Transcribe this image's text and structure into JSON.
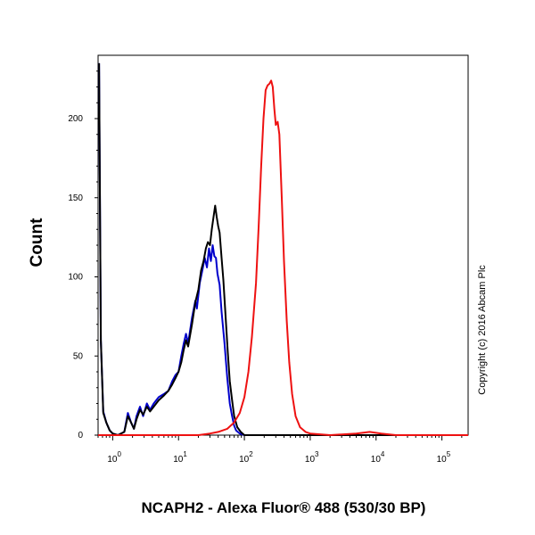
{
  "chart_data": {
    "type": "line",
    "title": "",
    "xlabel": "NCAPH2 - Alexa Fluor® 488 (530/30 BP)",
    "ylabel": "Count",
    "x_scale": "log",
    "xlim": [
      0.6,
      250000
    ],
    "ylim": [
      0,
      240
    ],
    "y_ticks": [
      0,
      50,
      100,
      150,
      200
    ],
    "y_tick_labels": [
      "0",
      "50",
      "100",
      "150",
      "200"
    ],
    "x_ticks": [
      1,
      10,
      100,
      1000,
      10000,
      100000
    ],
    "x_tick_base": "10",
    "x_tick_exponents": [
      "0",
      "1",
      "2",
      "3",
      "4",
      "5"
    ],
    "grid": false,
    "legend": "none",
    "series": [
      {
        "color": "#0000cc",
        "points": [
          [
            0.62,
            235
          ],
          [
            0.66,
            60
          ],
          [
            0.72,
            15
          ],
          [
            0.8,
            8
          ],
          [
            0.9,
            3
          ],
          [
            1.0,
            1
          ],
          [
            1.2,
            0
          ],
          [
            1.5,
            2
          ],
          [
            1.7,
            14
          ],
          [
            1.9,
            8
          ],
          [
            2.1,
            4
          ],
          [
            2.3,
            12
          ],
          [
            2.6,
            18
          ],
          [
            2.9,
            12
          ],
          [
            3.3,
            20
          ],
          [
            3.7,
            16
          ],
          [
            4.2,
            20
          ],
          [
            5,
            24
          ],
          [
            6,
            26
          ],
          [
            7,
            28
          ],
          [
            8,
            34
          ],
          [
            9,
            38
          ],
          [
            10,
            40
          ],
          [
            11,
            50
          ],
          [
            12,
            58
          ],
          [
            13,
            64
          ],
          [
            14,
            58
          ],
          [
            16,
            74
          ],
          [
            18,
            85
          ],
          [
            19,
            80
          ],
          [
            21,
            96
          ],
          [
            23,
            104
          ],
          [
            25,
            112
          ],
          [
            27,
            106
          ],
          [
            29,
            118
          ],
          [
            31,
            110
          ],
          [
            33,
            120
          ],
          [
            35,
            113
          ],
          [
            37,
            112
          ],
          [
            39,
            102
          ],
          [
            42,
            95
          ],
          [
            45,
            78
          ],
          [
            50,
            58
          ],
          [
            55,
            36
          ],
          [
            60,
            20
          ],
          [
            65,
            12
          ],
          [
            70,
            6
          ],
          [
            75,
            3
          ],
          [
            85,
            1
          ],
          [
            100,
            0
          ],
          [
            250000,
            0
          ]
        ]
      },
      {
        "color": "#000000",
        "points": [
          [
            0.62,
            235
          ],
          [
            0.66,
            60
          ],
          [
            0.72,
            14
          ],
          [
            0.8,
            8
          ],
          [
            0.9,
            3
          ],
          [
            1.0,
            1
          ],
          [
            1.2,
            0
          ],
          [
            1.5,
            2
          ],
          [
            1.7,
            12
          ],
          [
            1.9,
            8
          ],
          [
            2.1,
            4
          ],
          [
            2.3,
            10
          ],
          [
            2.6,
            16
          ],
          [
            2.9,
            13
          ],
          [
            3.3,
            18
          ],
          [
            3.7,
            15
          ],
          [
            4.2,
            18
          ],
          [
            5,
            22
          ],
          [
            6,
            25
          ],
          [
            7,
            28
          ],
          [
            8,
            32
          ],
          [
            9,
            36
          ],
          [
            10,
            40
          ],
          [
            11,
            46
          ],
          [
            12,
            54
          ],
          [
            13,
            60
          ],
          [
            14,
            56
          ],
          [
            16,
            70
          ],
          [
            18,
            84
          ],
          [
            20,
            92
          ],
          [
            22,
            104
          ],
          [
            24,
            110
          ],
          [
            26,
            118
          ],
          [
            28,
            122
          ],
          [
            30,
            120
          ],
          [
            32,
            130
          ],
          [
            34,
            138
          ],
          [
            36,
            145
          ],
          [
            38,
            138
          ],
          [
            40,
            132
          ],
          [
            42,
            128
          ],
          [
            45,
            112
          ],
          [
            48,
            98
          ],
          [
            52,
            74
          ],
          [
            56,
            52
          ],
          [
            60,
            34
          ],
          [
            65,
            22
          ],
          [
            70,
            12
          ],
          [
            78,
            5
          ],
          [
            88,
            2
          ],
          [
            100,
            0
          ],
          [
            250000,
            0
          ]
        ]
      },
      {
        "color": "#ee1111",
        "points": [
          [
            0.6,
            0
          ],
          [
            20,
            0
          ],
          [
            30,
            1
          ],
          [
            40,
            2
          ],
          [
            55,
            4
          ],
          [
            70,
            8
          ],
          [
            85,
            14
          ],
          [
            100,
            24
          ],
          [
            115,
            40
          ],
          [
            130,
            62
          ],
          [
            150,
            96
          ],
          [
            165,
            132
          ],
          [
            180,
            170
          ],
          [
            195,
            200
          ],
          [
            210,
            218
          ],
          [
            225,
            221
          ],
          [
            240,
            222
          ],
          [
            255,
            224
          ],
          [
            270,
            220
          ],
          [
            285,
            206
          ],
          [
            300,
            196
          ],
          [
            320,
            198
          ],
          [
            340,
            190
          ],
          [
            370,
            150
          ],
          [
            400,
            110
          ],
          [
            440,
            72
          ],
          [
            480,
            46
          ],
          [
            530,
            26
          ],
          [
            600,
            12
          ],
          [
            700,
            5
          ],
          [
            850,
            2
          ],
          [
            1000,
            1
          ],
          [
            2000,
            0
          ],
          [
            5000,
            1
          ],
          [
            8000,
            2
          ],
          [
            12000,
            1
          ],
          [
            20000,
            0
          ],
          [
            250000,
            0
          ]
        ]
      }
    ],
    "annotations": [
      "Copyright (c) 2016 Abcam Plc"
    ]
  }
}
